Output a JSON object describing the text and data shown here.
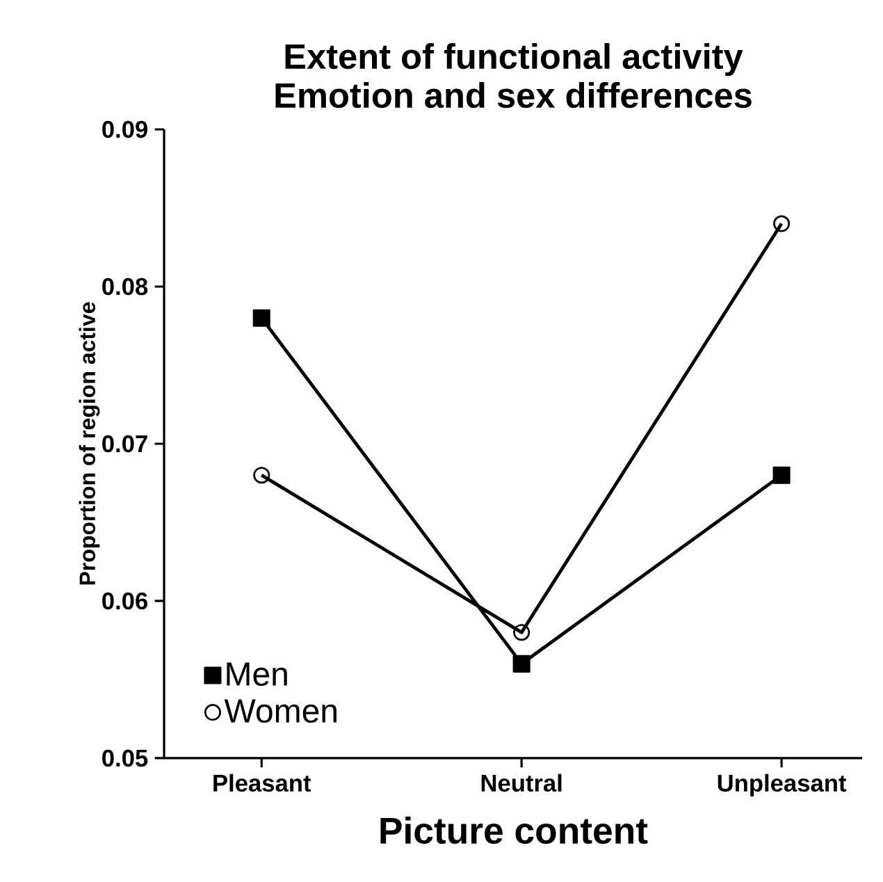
{
  "chart_data": {
    "type": "line",
    "title": "Extent of functional activity\nEmotion and sex differences",
    "xlabel": "Picture content",
    "ylabel": "Proportion of region active",
    "categories": [
      "Pleasant",
      "Neutral",
      "Unpleasant"
    ],
    "series": [
      {
        "name": "Men",
        "color": "#000000",
        "marker": "square",
        "values": [
          0.078,
          0.056,
          0.068
        ]
      },
      {
        "name": "Women",
        "color": "#000000",
        "marker": "circle",
        "values": [
          0.068,
          0.058,
          0.084
        ]
      }
    ],
    "ylim": [
      0.05,
      0.09
    ],
    "yticks": [
      0.05,
      0.06,
      0.07,
      0.08,
      0.09
    ],
    "grid": false,
    "legend": "bottom left",
    "line_style": "solid"
  }
}
